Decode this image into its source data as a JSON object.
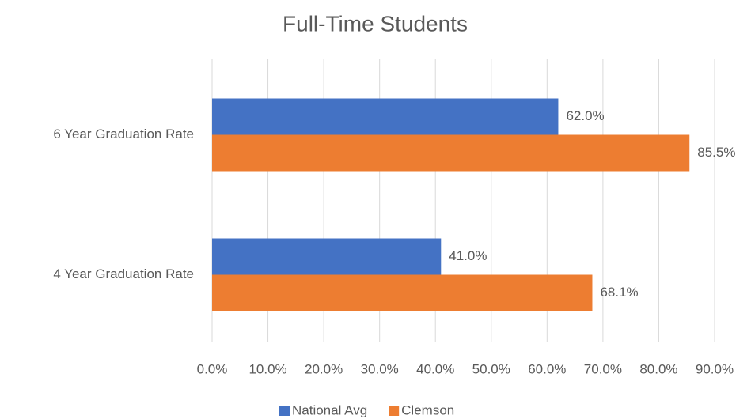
{
  "chart_data": {
    "type": "bar",
    "orientation": "horizontal",
    "title": "Full-Time Students",
    "categories": [
      "6 Year Graduation Rate",
      "4 Year Graduation Rate"
    ],
    "series": [
      {
        "name": "National Avg",
        "color": "#4472c4",
        "values": [
          62.0,
          41.0
        ],
        "value_labels": [
          "62.0%",
          "41.0%"
        ]
      },
      {
        "name": "Clemson",
        "color": "#ed7d31",
        "values": [
          85.5,
          68.1
        ],
        "value_labels": [
          "85.5%",
          "68.1%"
        ]
      }
    ],
    "xlim": [
      0,
      90
    ],
    "xticks": [
      {
        "value": 0,
        "label": "0.0%"
      },
      {
        "value": 10,
        "label": "10.0%"
      },
      {
        "value": 20,
        "label": "20.0%"
      },
      {
        "value": 30,
        "label": "30.0%"
      },
      {
        "value": 40,
        "label": "40.0%"
      },
      {
        "value": 50,
        "label": "50.0%"
      },
      {
        "value": 60,
        "label": "60.0%"
      },
      {
        "value": 70,
        "label": "70.0%"
      },
      {
        "value": 80,
        "label": "80.0%"
      },
      {
        "value": 90,
        "label": "90.0%"
      }
    ],
    "grid": true,
    "legend": "bottom"
  }
}
